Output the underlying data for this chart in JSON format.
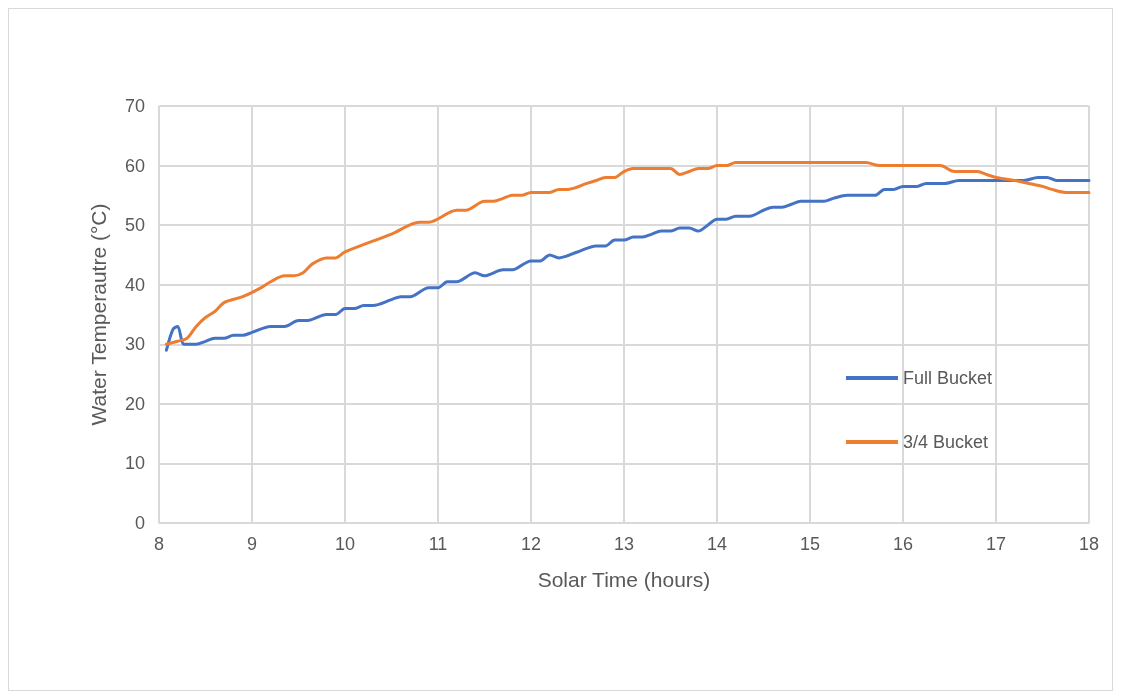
{
  "chart_data": {
    "type": "line",
    "xlabel": "Solar Time (hours)",
    "ylabel": "Water Temperautre (°C)",
    "xlim": [
      8,
      18
    ],
    "xticks": [
      8,
      9,
      10,
      11,
      12,
      13,
      14,
      15,
      16,
      17,
      18
    ],
    "ylim": [
      0,
      70
    ],
    "yticks": [
      0,
      10,
      20,
      30,
      40,
      50,
      60,
      70
    ],
    "grid": true,
    "legend": "right",
    "marker": "none",
    "line_style": "solid",
    "series": [
      {
        "name": "Full Bucket",
        "color": "#4472c4",
        "x": [
          8.08,
          8.15,
          8.2,
          8.27,
          8.4,
          8.5,
          8.6,
          8.7,
          8.8,
          8.9,
          9.0,
          9.2,
          9.35,
          9.5,
          9.6,
          9.8,
          9.9,
          10.0,
          10.1,
          10.2,
          10.3,
          10.5,
          10.6,
          10.7,
          10.9,
          11.0,
          11.1,
          11.2,
          11.4,
          11.5,
          11.7,
          11.8,
          12.0,
          12.1,
          12.2,
          12.3,
          12.5,
          12.7,
          12.8,
          12.9,
          13.0,
          13.1,
          13.2,
          13.3,
          13.4,
          13.5,
          13.6,
          13.7,
          13.8,
          13.9,
          14.0,
          14.1,
          14.2,
          14.35,
          14.5,
          14.6,
          14.7,
          14.8,
          14.9,
          15.0,
          15.15,
          15.25,
          15.4,
          15.6,
          15.7,
          15.8,
          15.9,
          16.0,
          16.15,
          16.25,
          16.45,
          16.6,
          17.0,
          17.3,
          17.45,
          17.55,
          17.65,
          18.0
        ],
        "values": [
          29,
          32.5,
          33,
          30,
          30,
          30.5,
          31,
          31,
          31.5,
          31.5,
          32,
          33,
          33,
          34,
          34,
          35,
          35,
          36,
          36,
          36.5,
          36.5,
          37.5,
          38,
          38,
          39.5,
          39.5,
          40.5,
          40.5,
          42,
          41.5,
          42.5,
          42.5,
          44,
          44,
          45,
          44.5,
          45.5,
          46.5,
          46.5,
          47.5,
          47.5,
          48,
          48,
          48.5,
          49,
          49,
          49.5,
          49.5,
          49,
          50,
          51,
          51,
          51.5,
          51.5,
          52.5,
          53,
          53,
          53.5,
          54,
          54,
          54,
          54.5,
          55,
          55,
          55,
          56,
          56,
          56.5,
          56.5,
          57,
          57,
          57.5,
          57.5,
          57.5,
          58,
          58,
          57.5,
          57.5
        ]
      },
      {
        "name": "3/4 Bucket",
        "color": "#ed7d31",
        "x": [
          8.08,
          8.2,
          8.3,
          8.4,
          8.5,
          8.6,
          8.7,
          8.9,
          9.1,
          9.2,
          9.35,
          9.45,
          9.55,
          9.65,
          9.8,
          9.9,
          10.0,
          10.5,
          10.8,
          10.9,
          11.2,
          11.3,
          11.5,
          11.6,
          11.7,
          11.8,
          11.9,
          12.0,
          12.2,
          12.3,
          12.4,
          12.6,
          12.7,
          12.8,
          12.9,
          13.0,
          13.1,
          13.5,
          13.6,
          13.7,
          13.8,
          13.9,
          14.0,
          14.1,
          14.2,
          15.6,
          15.75,
          16.4,
          16.55,
          16.8,
          16.9,
          17.0,
          17.2,
          17.35,
          17.5,
          17.6,
          17.75,
          18.0
        ],
        "values": [
          30,
          30.5,
          31,
          33,
          34.5,
          35.5,
          37,
          38,
          39.5,
          40.5,
          41.5,
          41.5,
          42,
          43.5,
          44.5,
          44.5,
          45.5,
          48.5,
          50.5,
          50.5,
          52.5,
          52.5,
          54,
          54,
          54.5,
          55,
          55,
          55.5,
          55.5,
          56,
          56,
          57,
          57.5,
          58,
          58,
          59,
          59.5,
          59.5,
          58.5,
          59,
          59.5,
          59.5,
          60,
          60,
          60.5,
          60.5,
          60,
          60,
          59,
          59,
          58.5,
          58,
          57.5,
          57,
          56.5,
          56,
          55.5,
          55.5
        ]
      }
    ]
  }
}
